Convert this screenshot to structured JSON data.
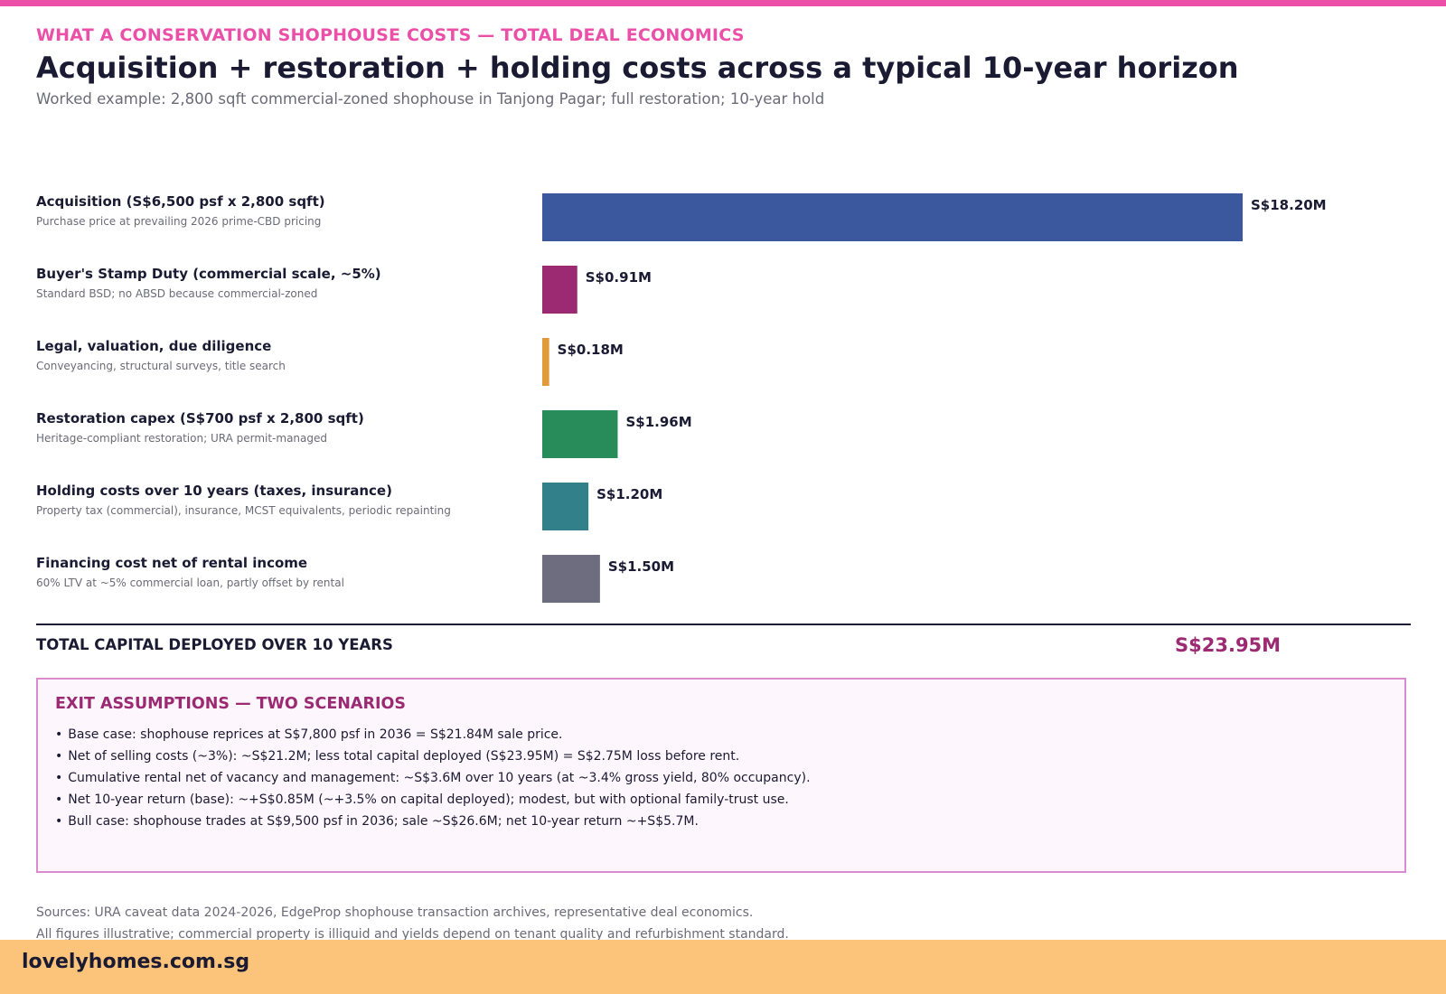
{
  "header": {
    "kicker": "WHAT A CONSERVATION SHOPHOUSE COSTS — TOTAL DEAL ECONOMICS",
    "title": "Acquisition + restoration + holding costs across a typical 10-year horizon",
    "subtitle": "Worked example: 2,800 sqft commercial-zoned shophouse in Tanjong Pagar; full restoration; 10-year hold"
  },
  "colors": {
    "accent_pink": "#ec4fa8",
    "magenta": "#9b2a72",
    "footer_bg": "#fcc47a",
    "text_dark": "#1a1a33",
    "text_muted": "#6b6b78"
  },
  "chart_data": {
    "type": "bar",
    "orientation": "horizontal",
    "value_unit": "S$M",
    "categories": [
      "Acquisition (S$6,500 psf x 2,800 sqft)",
      "Buyer's Stamp Duty (commercial scale, ~5%)",
      "Legal, valuation, due diligence",
      "Restoration capex (S$700 psf x 2,800 sqft)",
      "Holding costs over 10 years (taxes, insurance)",
      "Financing cost net of rental income"
    ],
    "descriptions": [
      "Purchase price at prevailing 2026 prime-CBD pricing",
      "Standard BSD; no ABSD because commercial-zoned",
      "Conveyancing, structural surveys, title search",
      "Heritage-compliant restoration; URA permit-managed",
      "Property tax (commercial), insurance, MCST equivalents, periodic repainting",
      "60% LTV at ~5% commercial loan, partly offset by rental"
    ],
    "values": [
      18.2,
      0.91,
      0.18,
      1.96,
      1.2,
      1.5
    ],
    "value_labels": [
      "S$18.20M",
      "S$0.91M",
      "S$0.18M",
      "S$1.96M",
      "S$1.20M",
      "S$1.50M"
    ],
    "bar_colors": [
      "#3b579d",
      "#9b2a72",
      "#e09a3a",
      "#278c5a",
      "#32808a",
      "#6e6d80"
    ],
    "xlim": [
      0,
      18.2
    ],
    "grid": false,
    "legend": "none"
  },
  "total": {
    "label": "TOTAL CAPITAL DEPLOYED OVER 10 YEARS",
    "value": "S$23.95M"
  },
  "exit": {
    "title": "EXIT ASSUMPTIONS — TWO SCENARIOS",
    "bullet": "•",
    "items": [
      "Base case: shophouse reprices at S$7,800 psf in 2036 = S$21.84M sale price.",
      "Net of selling costs (~3%): ~S$21.2M; less total capital deployed (S$23.95M) = S$2.75M loss before rent.",
      "Cumulative rental net of vacancy and management: ~S$3.6M over 10 years (at ~3.4% gross yield, 80% occupancy).",
      "Net 10-year return (base): ~+S$0.85M (~+3.5% on capital deployed); modest, but with optional family-trust use.",
      "Bull case: shophouse trades at S$9,500 psf in 2036; sale ~S$26.6M; net 10-year return ~+S$5.7M."
    ]
  },
  "sources": [
    "Sources: URA caveat data 2024-2026, EdgeProp shophouse transaction archives, representative deal economics.",
    "All figures illustrative; commercial property is illiquid and yields depend on tenant quality and refurbishment standard."
  ],
  "footer": {
    "brand": "lovelyhomes.com.sg"
  }
}
